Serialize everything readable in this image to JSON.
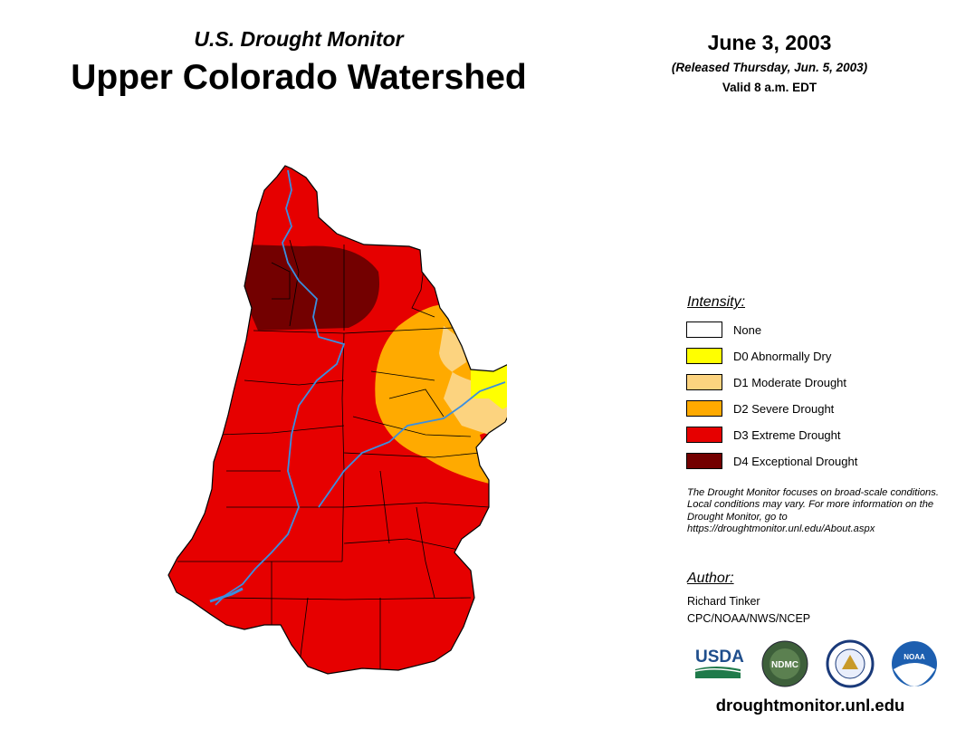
{
  "header": {
    "subtitle": "U.S. Drought Monitor",
    "title": "Upper Colorado Watershed",
    "date": "June 3, 2003",
    "released": "(Released Thursday, Jun. 5, 2003)",
    "valid": "Valid 8 a.m. EDT"
  },
  "legend": {
    "heading": "Intensity:",
    "items": [
      {
        "label": "None",
        "color": "#ffffff"
      },
      {
        "label": "D0 Abnormally Dry",
        "color": "#ffff00"
      },
      {
        "label": "D1 Moderate Drought",
        "color": "#fcd37f"
      },
      {
        "label": "D2 Severe Drought",
        "color": "#ffaa00"
      },
      {
        "label": "D3 Extreme Drought",
        "color": "#e60000"
      },
      {
        "label": "D4 Exceptional Drought",
        "color": "#730000"
      }
    ]
  },
  "note": "The Drought Monitor focuses on broad-scale conditions. Local conditions may vary. For more information on the Drought Monitor, go to https://droughtmonitor.unl.edu/About.aspx",
  "author": {
    "heading": "Author:",
    "name": "Richard Tinker",
    "org": "CPC/NOAA/NWS/NCEP"
  },
  "logos": {
    "usda": "USDA",
    "ndmc": "NDMC",
    "noaa": "NOAA"
  },
  "url": "droughtmonitor.unl.edu",
  "colors": {
    "river": "#3a8fe0",
    "boundary": "#000000"
  }
}
